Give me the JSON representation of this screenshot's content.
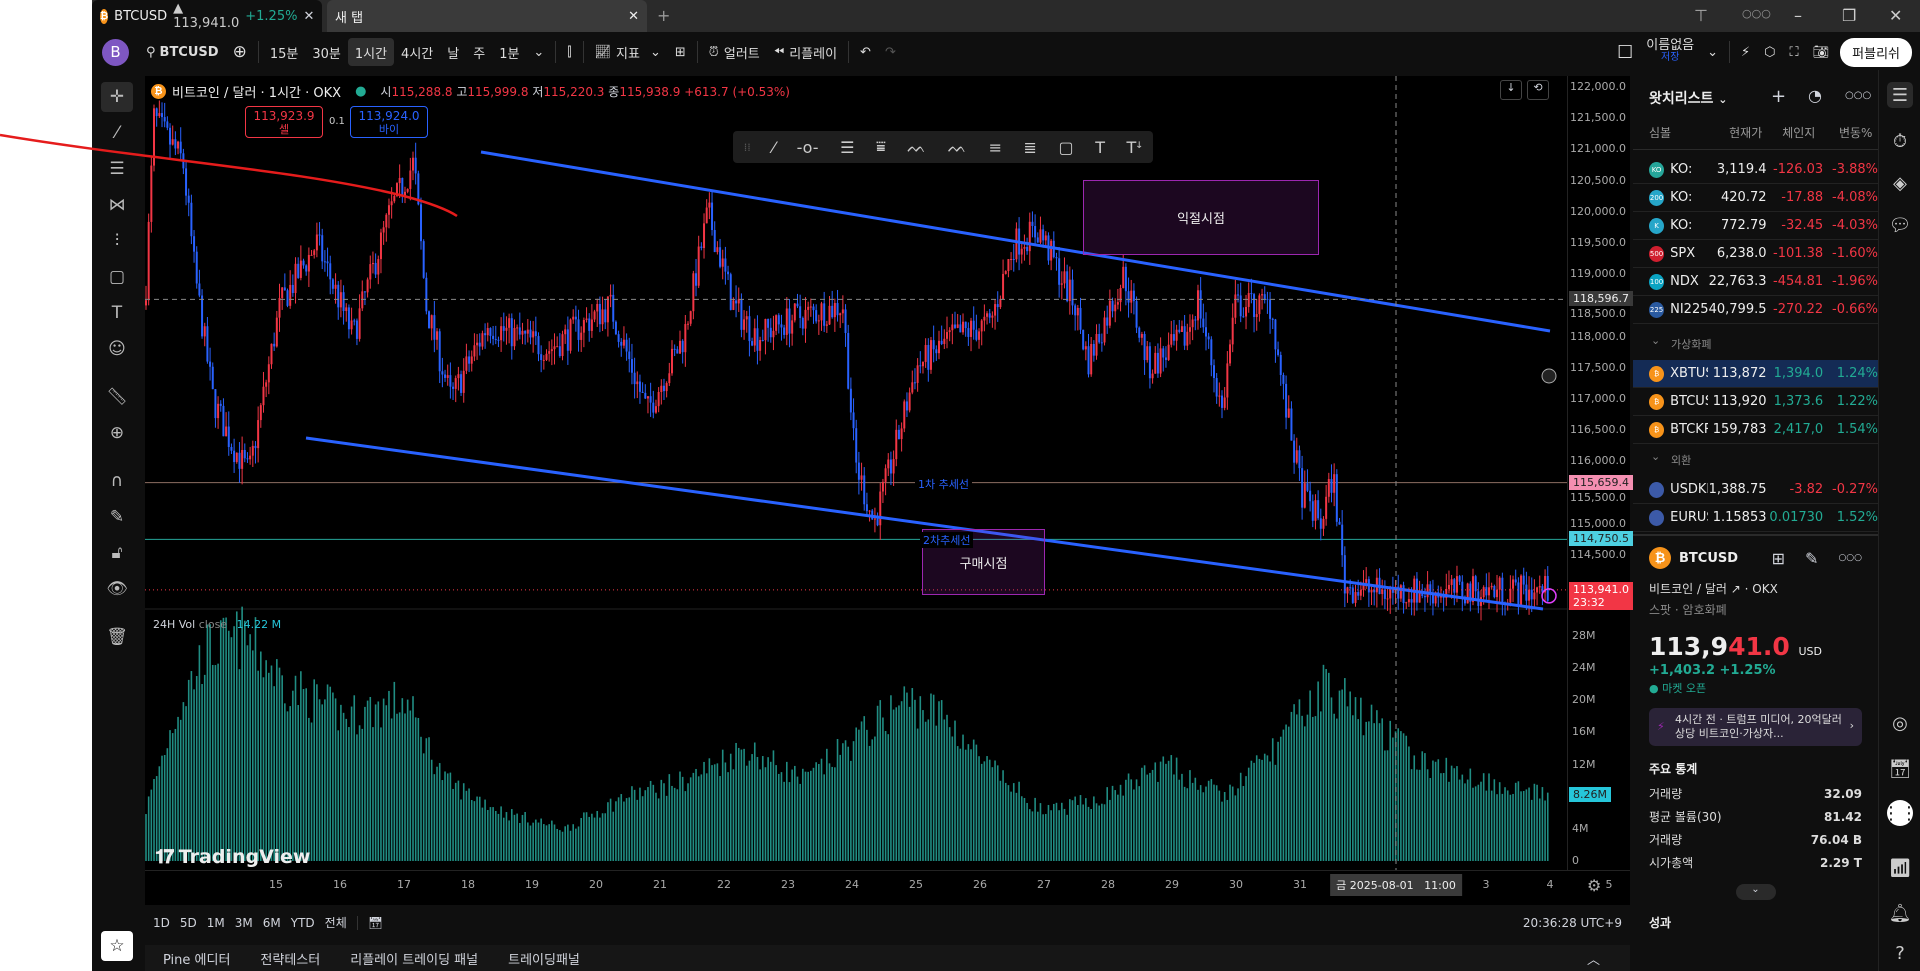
{
  "colors": {
    "up": "#f23645",
    "down": "#2962ff",
    "accent": "#22ab94",
    "trend": "#2962ff",
    "annotation": "#9c27b0",
    "coin": "#f7931a"
  },
  "tabs": [
    {
      "label": "BTCUSD",
      "price": "▲ 113,941.0",
      "change": "+1.25%",
      "icon": "bitcoin-icon"
    },
    {
      "label": "새 탭"
    }
  ],
  "toolbar": {
    "avatar": "B",
    "symbol": "BTCUSD",
    "intervals": [
      "15분",
      "30분",
      "1시간",
      "4시간",
      "날",
      "주",
      "1분"
    ],
    "active_interval": "1시간",
    "indicators": "지표",
    "alert": "얼러트",
    "replay": "리플레이",
    "layout_name": "이름없음",
    "save": "저장",
    "publish": "퍼블리쉬"
  },
  "legend": {
    "title": "비트코인 / 달러 · 1시간 · OKX",
    "o_label": "시",
    "o": "115,288.8",
    "h_label": "고",
    "h": "115,999.8",
    "l_label": "저",
    "l": "115,220.3",
    "c_label": "종",
    "c": "115,938.9",
    "change": "+613.7 (+0.53%)",
    "sell_price": "113,923.9",
    "sell_label": "셀",
    "spread": "0.1",
    "buy_price": "113,924.0",
    "buy_label": "바이"
  },
  "annotations": {
    "take_profit": "익절시점",
    "buy_point": "구매시점",
    "trend1": "1차 추세선",
    "trend2": "2차추세선"
  },
  "price_axis": {
    "ticks": [
      "122,000.0",
      "121,500.0",
      "121,000.0",
      "120,500.0",
      "120,000.0",
      "119,500.0",
      "119,000.0",
      "118,500.0",
      "118,000.0",
      "117,500.0",
      "117,000.0",
      "116,500.0",
      "116,000.0",
      "115,500.0",
      "115,000.0",
      "114,500.0"
    ],
    "crosshair": "118,596.7",
    "line1": "115,659.4",
    "line2": "114,750.5",
    "last": "113,941.0",
    "countdown": "23:32"
  },
  "volume": {
    "label": "24H Vol",
    "sub": "close",
    "value": "14.22 M",
    "ticks": [
      "28M",
      "24M",
      "20M",
      "16M",
      "12M",
      "4M",
      "0"
    ],
    "last": "8.26M"
  },
  "time_axis": {
    "ticks": [
      "15",
      "16",
      "17",
      "18",
      "19",
      "20",
      "21",
      "22",
      "23",
      "24",
      "25",
      "26",
      "27",
      "28",
      "29",
      "30",
      "31",
      "3",
      "4",
      "5"
    ],
    "crosshair": "금 2025-08-01   11:00"
  },
  "ranges": [
    "1D",
    "5D",
    "1M",
    "3M",
    "6M",
    "YTD",
    "전체"
  ],
  "clock": "20:36:28 UTC+9",
  "bottom_tabs": [
    "Pine 에디터",
    "전략테스터",
    "리플레이 트레이딩 패널",
    "트레이딩패널"
  ],
  "logo": "TradingView",
  "watchlist": {
    "title": "왓치리스트",
    "columns": [
      "심볼",
      "현재가",
      "체인지",
      "변동%"
    ],
    "rows": [
      {
        "icon": "KO",
        "sym": "KO:",
        "last": "3,119.4",
        "chg": "-126.03",
        "pct": "-3.88%",
        "color": "#26a69a"
      },
      {
        "icon": "200",
        "sym": "KO:",
        "last": "420.72",
        "chg": "-17.88",
        "pct": "-4.08%",
        "color": "#26a6c9"
      },
      {
        "icon": "K",
        "sym": "KO:",
        "last": "772.79",
        "chg": "-32.45",
        "pct": "-4.03%",
        "color": "#26a6c9"
      },
      {
        "icon": "500",
        "sym": "SPX",
        "last": "6,238.0",
        "chg": "-101.38",
        "pct": "-1.60%",
        "color": "#d01f2f"
      },
      {
        "icon": "100",
        "sym": "NDX",
        "last": "22,763.3",
        "chg": "-454.81",
        "pct": "-1.96%",
        "color": "#0aa3c2"
      },
      {
        "icon": "225",
        "sym": "NI225",
        "last": "40,799.5",
        "chg": "-270.22",
        "pct": "-0.66%",
        "color": "#2a5aa0"
      }
    ],
    "sections": [
      {
        "title": "가상화폐",
        "rows": [
          {
            "sym": "XBTUSD",
            "last": "113,872",
            "chg": "1,394.0",
            "pct": "1.24%"
          },
          {
            "sym": "BTCUSD",
            "last": "113,920",
            "chg": "1,373.6",
            "pct": "1.22%"
          },
          {
            "sym": "BTCKRW",
            "last": "159,783",
            "chg": "2,417,0",
            "pct": "1.54%"
          }
        ]
      },
      {
        "title": "외환",
        "rows": [
          {
            "sym": "USDKRW",
            "last": "1,388.75",
            "chg": "-3.82",
            "pct": "-0.27%"
          },
          {
            "sym": "EURUSD",
            "last": "1.15853",
            "chg": "0.01730",
            "pct": "1.52%"
          }
        ]
      }
    ]
  },
  "details": {
    "symbol": "BTCUSD",
    "desc": "비트코인 / 달러",
    "exchange": "OKX",
    "type": "스팟 · 암호화폐",
    "price_main": "113,9",
    "price_tail": "41.0",
    "currency": "USD",
    "change": "+1,403.2  +1.25%",
    "status": "마켓 오픈",
    "news": "4시간 전 · 트럼프 미디어, 20억달러 상당 비트코인·가상자...",
    "stats_title": "주요 통계",
    "stats": [
      {
        "k": "거래량",
        "v": "32.09"
      },
      {
        "k": "평균 볼륨(30)",
        "v": "81.42"
      },
      {
        "k": "거래량",
        "v": "76.04 B"
      },
      {
        "k": "시가총액",
        "v": "2.29 T"
      }
    ],
    "perf_title": "성과"
  }
}
